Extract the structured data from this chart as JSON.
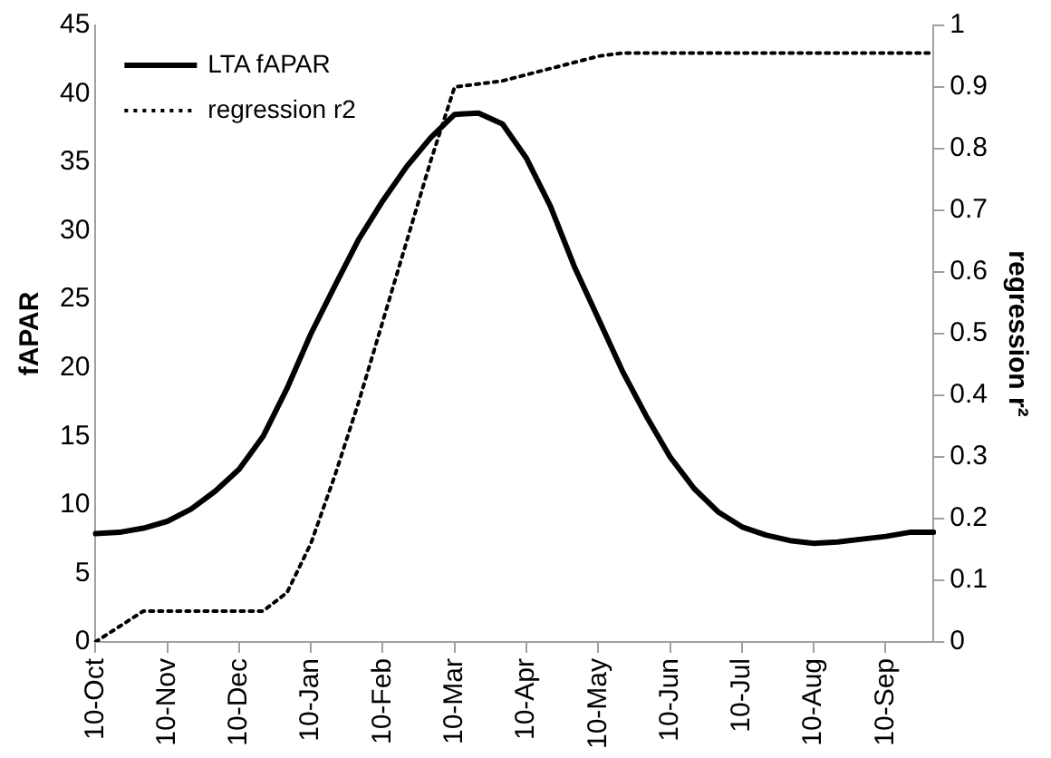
{
  "chart_data": {
    "type": "line",
    "ylabel": "fAPAR",
    "y2label": "regression r²",
    "categories": [
      "10-Oct",
      null,
      null,
      "10-Nov",
      null,
      null,
      "10-Dec",
      null,
      null,
      "10-Jan",
      null,
      null,
      "10-Feb",
      null,
      null,
      "10-Mar",
      null,
      null,
      "10-Apr",
      null,
      null,
      "10-May",
      null,
      null,
      "10-Jun",
      null,
      null,
      "10-Jul",
      null,
      null,
      "10-Aug",
      null,
      null,
      "10-Sep",
      null,
      null
    ],
    "series": [
      {
        "name": "LTA fAPAR",
        "color": "#000000",
        "line_style": "solid",
        "values": [
          7.9,
          8.0,
          8.3,
          8.8,
          9.7,
          11.0,
          12.6,
          15.0,
          18.5,
          22.5,
          26.0,
          29.4,
          32.2,
          34.7,
          36.8,
          38.5,
          38.6,
          37.8,
          35.3,
          31.8,
          27.4,
          23.6,
          19.8,
          16.5,
          13.5,
          11.2,
          9.5,
          8.4,
          7.8,
          7.4,
          7.2,
          7.3,
          7.5,
          7.7,
          8.0,
          8.0
        ]
      },
      {
        "name": "regression r2",
        "color": "#000000",
        "line_style": "dotted",
        "axis": "y2",
        "values": [
          0,
          0.025,
          0.05,
          0.05,
          0.05,
          0.05,
          0.05,
          0.05,
          0.08,
          0.16,
          0.27,
          0.39,
          0.52,
          0.65,
          0.78,
          0.9,
          0.905,
          0.91,
          0.92,
          0.93,
          0.94,
          0.95,
          0.955,
          0.955,
          0.955,
          0.955,
          0.955,
          0.955,
          0.955,
          0.955,
          0.955,
          0.955,
          0.955,
          0.955,
          0.955,
          0.955
        ]
      }
    ],
    "ylim": [
      0,
      45
    ],
    "yticks": [
      0,
      5,
      10,
      15,
      20,
      25,
      30,
      35,
      40,
      45
    ],
    "y2lim": [
      0,
      1
    ],
    "y2ticks": [
      0,
      0.1,
      0.2,
      0.3,
      0.4,
      0.5,
      0.6,
      0.7,
      0.8,
      0.9,
      1
    ],
    "legend": "top left",
    "marker": "none",
    "grid": false
  }
}
